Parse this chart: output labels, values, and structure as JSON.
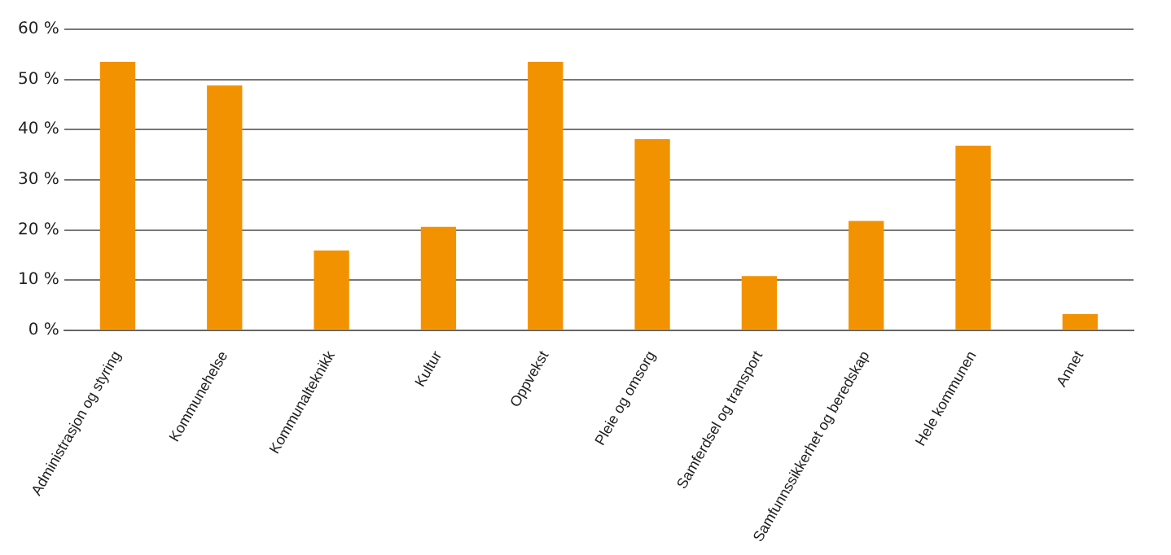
{
  "chart_data": {
    "type": "bar",
    "categories": [
      "Administrasjon og styring",
      "Kommunehelse",
      "Kommunalteknikk",
      "Kultur",
      "Oppvekst",
      "Pleie og omsorg",
      "Samferdsel og transport",
      "Samfunnssikkerhet og beredskap",
      "Hele kommunen",
      "Annet"
    ],
    "values": [
      53.5,
      48.8,
      15.9,
      20.6,
      53.5,
      38.1,
      10.8,
      21.8,
      36.8,
      3.2
    ],
    "color": "#f39200",
    "ylim": [
      0,
      60
    ],
    "yticks": [
      {
        "value": 0,
        "label": "0 %"
      },
      {
        "value": 10,
        "label": "10 %"
      },
      {
        "value": 20,
        "label": "20 %"
      },
      {
        "value": 30,
        "label": "30 %"
      },
      {
        "value": 40,
        "label": "40 %"
      },
      {
        "value": 50,
        "label": "50 %"
      },
      {
        "value": 60,
        "label": "60 %"
      }
    ],
    "grid": "y",
    "legend": false
  }
}
